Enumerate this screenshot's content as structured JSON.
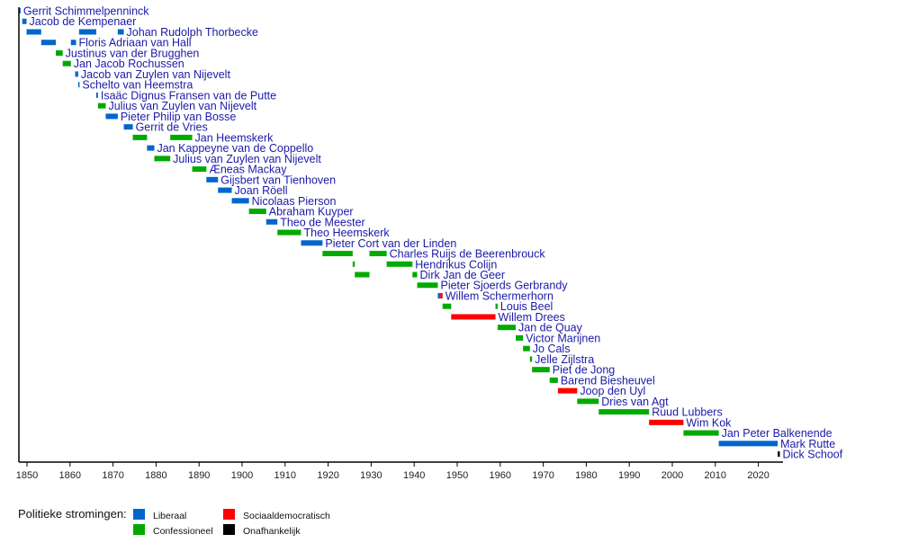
{
  "chart_data": {
    "type": "timeline",
    "title": "",
    "xlabel": "",
    "xlim": [
      1848,
      2026
    ],
    "xticks": [
      1850,
      1860,
      1870,
      1880,
      1890,
      1900,
      1910,
      1920,
      1930,
      1940,
      1950,
      1960,
      1970,
      1980,
      1990,
      2000,
      2010,
      2020
    ],
    "colors": {
      "liberaal": "#0066cc",
      "confessioneel": "#00aa00",
      "sociaaldemocratisch": "#ff0000",
      "onafhankelijk": "#000000",
      "label": "#1a1aa8"
    },
    "legend": {
      "title": "Politieke stromingen:",
      "placement": "bottom-left",
      "entries": [
        {
          "key": "liberaal",
          "label": "Liberaal"
        },
        {
          "key": "confessioneel",
          "label": "Confessioneel"
        },
        {
          "key": "sociaaldemocratisch",
          "label": "Sociaaldemocratisch"
        },
        {
          "key": "onafhankelijk",
          "label": "Onafhankelijk"
        }
      ]
    },
    "rows": [
      {
        "name": "Gerrit Schimmelpenninck",
        "party": "liberaal",
        "terms": [
          [
            1848.2,
            1848.4
          ]
        ]
      },
      {
        "name": "Jacob de Kempenaer",
        "party": "liberaal",
        "terms": [
          [
            1848.9,
            1849.9
          ]
        ]
      },
      {
        "name": "Johan Rudolph Thorbecke",
        "party": "liberaal",
        "terms": [
          [
            1849.9,
            1853.3
          ],
          [
            1862.1,
            1866.1
          ],
          [
            1871.1,
            1872.5
          ]
        ]
      },
      {
        "name": "Floris Adriaan van Hall",
        "party": "liberaal",
        "terms": [
          [
            1853.3,
            1856.7
          ],
          [
            1860.2,
            1861.4
          ]
        ]
      },
      {
        "name": "Justinus van der Brugghen",
        "party": "confessioneel",
        "terms": [
          [
            1856.7,
            1858.3
          ]
        ]
      },
      {
        "name": "Jan Jacob Rochussen",
        "party": "confessioneel",
        "terms": [
          [
            1858.3,
            1860.2
          ]
        ]
      },
      {
        "name": "Jacob van Zuylen van Nijevelt",
        "party": "liberaal",
        "terms": [
          [
            1861.2,
            1861.9
          ]
        ]
      },
      {
        "name": "Schelto van Heemstra",
        "party": "liberaal",
        "terms": [
          [
            1861.9,
            1862.1
          ]
        ]
      },
      {
        "name": "Isaäc Dignus Fransen van de Putte",
        "party": "liberaal",
        "terms": [
          [
            1866.1,
            1866.5
          ]
        ]
      },
      {
        "name": "Julius van Zuylen van Nijevelt",
        "party": "confessioneel",
        "terms": [
          [
            1866.5,
            1868.3
          ]
        ]
      },
      {
        "name": "Pieter Philip van Bosse",
        "party": "liberaal",
        "terms": [
          [
            1868.3,
            1871.1
          ]
        ]
      },
      {
        "name": "Gerrit de Vries",
        "party": "liberaal",
        "terms": [
          [
            1872.5,
            1874.6
          ]
        ]
      },
      {
        "name": "Jan Heemskerk",
        "party": "confessioneel",
        "terms": [
          [
            1874.6,
            1877.9
          ],
          [
            1883.3,
            1888.4
          ]
        ]
      },
      {
        "name": "Jan Kappeyne van de Coppello",
        "party": "liberaal",
        "terms": [
          [
            1877.9,
            1879.6
          ]
        ]
      },
      {
        "name": "Julius van Zuylen van Nijevelt",
        "party": "confessioneel",
        "terms": [
          [
            1879.6,
            1883.3
          ]
        ]
      },
      {
        "name": "Æneas Mackay",
        "party": "confessioneel",
        "terms": [
          [
            1888.4,
            1891.7
          ]
        ]
      },
      {
        "name": "Gijsbert van Tienhoven",
        "party": "liberaal",
        "terms": [
          [
            1891.7,
            1894.4
          ]
        ]
      },
      {
        "name": "Joan Röell",
        "party": "liberaal",
        "terms": [
          [
            1894.4,
            1897.6
          ]
        ]
      },
      {
        "name": "Nicolaas Pierson",
        "party": "liberaal",
        "terms": [
          [
            1897.6,
            1901.6
          ]
        ]
      },
      {
        "name": "Abraham Kuyper",
        "party": "confessioneel",
        "terms": [
          [
            1901.6,
            1905.6
          ]
        ]
      },
      {
        "name": "Theo de Meester",
        "party": "liberaal",
        "terms": [
          [
            1905.6,
            1908.2
          ]
        ]
      },
      {
        "name": "Theo Heemskerk",
        "party": "confessioneel",
        "terms": [
          [
            1908.2,
            1913.7
          ]
        ]
      },
      {
        "name": "Pieter Cort van der Linden",
        "party": "liberaal",
        "terms": [
          [
            1913.7,
            1918.7
          ]
        ]
      },
      {
        "name": "Charles Ruijs de Beerenbrouck",
        "party": "confessioneel",
        "terms": [
          [
            1918.7,
            1925.7
          ],
          [
            1929.6,
            1933.6
          ]
        ]
      },
      {
        "name": "Hendrikus Colijn",
        "party": "confessioneel",
        "terms": [
          [
            1925.7,
            1926.2
          ],
          [
            1933.6,
            1939.6
          ]
        ]
      },
      {
        "name": "Dirk Jan de Geer",
        "party": "confessioneel",
        "terms": [
          [
            1926.2,
            1929.6
          ],
          [
            1939.6,
            1940.7
          ]
        ]
      },
      {
        "name": "Pieter Sjoerds Gerbrandy",
        "party": "confessioneel",
        "terms": [
          [
            1940.7,
            1945.5
          ]
        ]
      },
      {
        "name": "Willem Schermerhorn",
        "party": "liberaal+sociaaldemocratisch",
        "terms": [
          [
            1945.5,
            1946.6
          ]
        ]
      },
      {
        "name": "Louis Beel",
        "party": "confessioneel",
        "terms": [
          [
            1946.6,
            1948.6
          ],
          [
            1958.9,
            1959.4
          ]
        ]
      },
      {
        "name": "Willem Drees",
        "party": "sociaaldemocratisch",
        "terms": [
          [
            1948.6,
            1958.9
          ]
        ]
      },
      {
        "name": "Jan de Quay",
        "party": "confessioneel",
        "terms": [
          [
            1959.4,
            1963.6
          ]
        ]
      },
      {
        "name": "Victor Marijnen",
        "party": "confessioneel",
        "terms": [
          [
            1963.6,
            1965.3
          ]
        ]
      },
      {
        "name": "Jo Cals",
        "party": "confessioneel",
        "terms": [
          [
            1965.3,
            1966.9
          ]
        ]
      },
      {
        "name": "Jelle Zijlstra",
        "party": "confessioneel",
        "terms": [
          [
            1966.9,
            1967.4
          ]
        ]
      },
      {
        "name": "Piet de Jong",
        "party": "confessioneel",
        "terms": [
          [
            1967.4,
            1971.5
          ]
        ]
      },
      {
        "name": "Barend Biesheuvel",
        "party": "confessioneel",
        "terms": [
          [
            1971.5,
            1973.4
          ]
        ]
      },
      {
        "name": "Joop den Uyl",
        "party": "sociaaldemocratisch",
        "terms": [
          [
            1973.4,
            1977.9
          ]
        ]
      },
      {
        "name": "Dries van Agt",
        "party": "confessioneel",
        "terms": [
          [
            1977.9,
            1982.9
          ]
        ]
      },
      {
        "name": "Ruud Lubbers",
        "party": "confessioneel",
        "terms": [
          [
            1982.9,
            1994.6
          ]
        ]
      },
      {
        "name": "Wim Kok",
        "party": "sociaaldemocratisch",
        "terms": [
          [
            1994.6,
            2002.6
          ]
        ]
      },
      {
        "name": "Jan Peter Balkenende",
        "party": "confessioneel",
        "terms": [
          [
            2002.6,
            2010.8
          ]
        ]
      },
      {
        "name": "Mark Rutte",
        "party": "liberaal",
        "terms": [
          [
            2010.8,
            2024.5
          ]
        ]
      },
      {
        "name": "Dick Schoof",
        "party": "onafhankelijk",
        "terms": [
          [
            2024.5,
            2025.0
          ]
        ]
      }
    ]
  }
}
